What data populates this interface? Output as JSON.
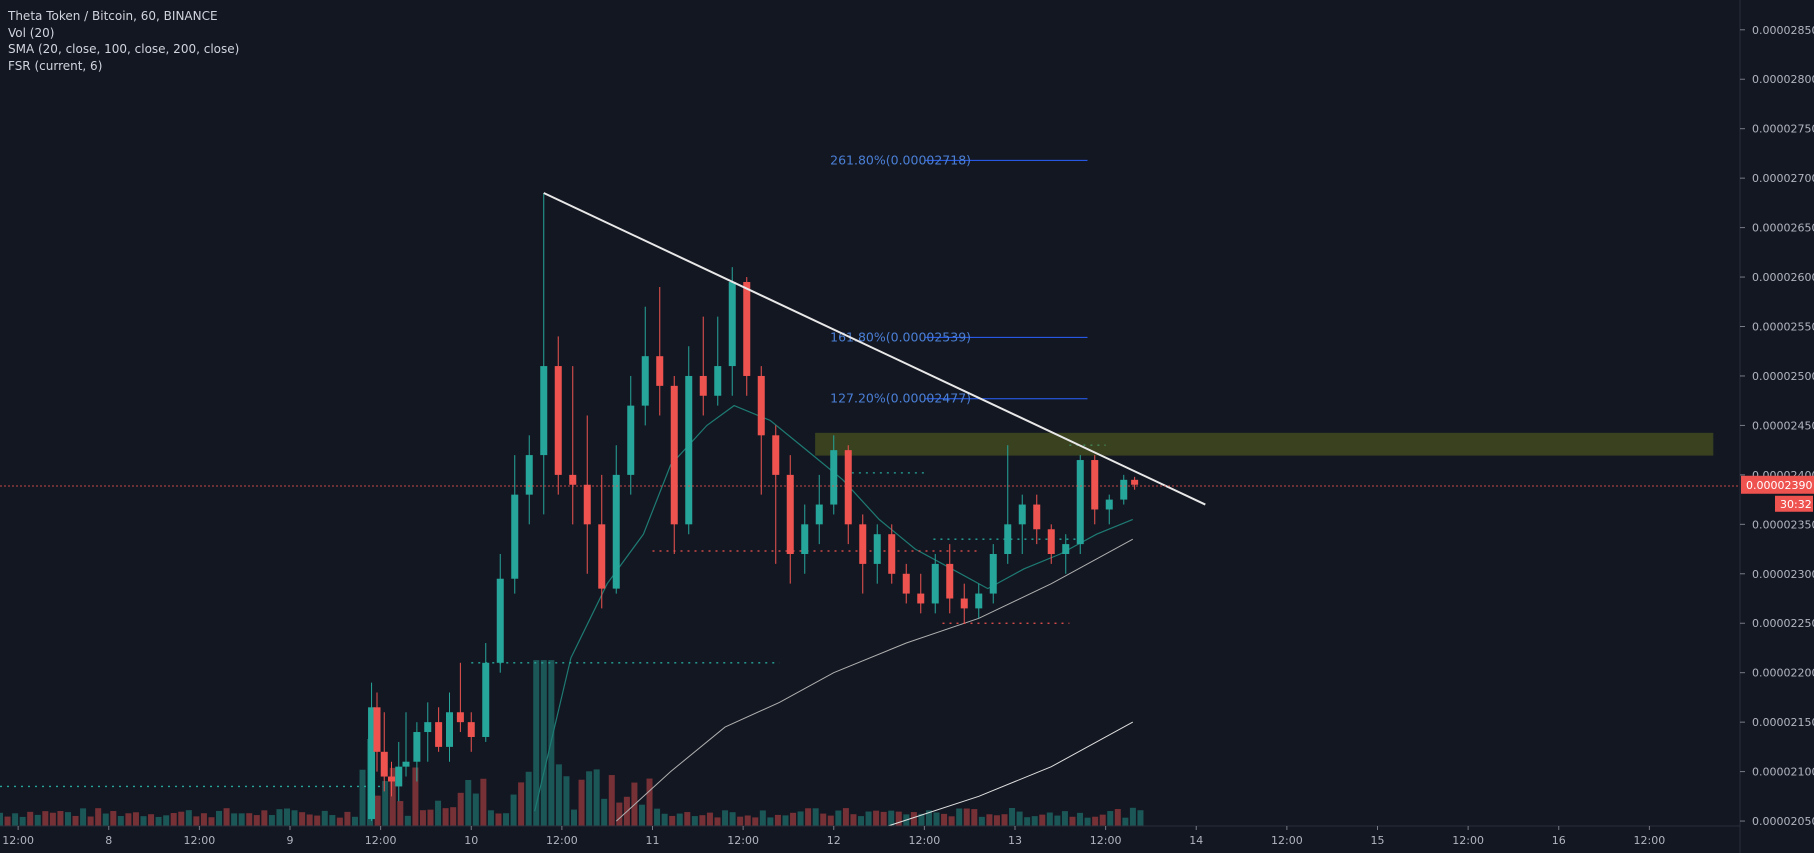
{
  "legend": {
    "title": "Theta Token / Bitcoin, 60, BINANCE",
    "vol": "Vol (20)",
    "sma": "SMA (20, close, 100, close, 200, close)",
    "fsr": "FSR (current, 6)"
  },
  "colors": {
    "background": "#131722",
    "up": "#26a69a",
    "down": "#ef5350",
    "fib": "#2962ff",
    "fib_text": "#4a7fd6",
    "trendline": "#e8e8e8",
    "zone": "#5f6b1e"
  },
  "price_axis": {
    "labels": [
      "0.00002850",
      "0.00002800",
      "0.00002750",
      "0.00002700",
      "0.00002650",
      "0.00002600",
      "0.00002550",
      "0.00002500",
      "0.00002450",
      "0.00002400",
      "0.00002350",
      "0.00002300",
      "0.00002250",
      "0.00002200",
      "0.00002150",
      "0.00002100",
      "0.00002050"
    ],
    "current_price": "0.00002390",
    "countdown": "30:32"
  },
  "time_axis": {
    "labels": [
      "12:00",
      "8",
      "12:00",
      "9",
      "12:00",
      "10",
      "12:00",
      "11",
      "12:00",
      "12",
      "12:00",
      "13",
      "12:00",
      "14",
      "12:00",
      "15",
      "12:00",
      "16",
      "12:00"
    ]
  },
  "fib_levels": [
    {
      "label": "261.80%(0.00002718)",
      "price": 2.718e-05
    },
    {
      "label": "161.80%(0.00002539)",
      "price": 2.539e-05
    },
    {
      "label": "127.20%(0.00002477)",
      "price": 2.477e-05
    }
  ],
  "chart_data": {
    "type": "candlestick",
    "symbol": "Theta Token / Bitcoin",
    "interval": "60",
    "exchange": "BINANCE",
    "ylim": [
      2.045e-05,
      2.87e-05
    ],
    "x_range_days": [
      7.4,
      17.0
    ],
    "ohlc": [
      {
        "t": 9.45,
        "o": 2.052e-05,
        "h": 2.19e-05,
        "l": 2.05e-05,
        "c": 2.165e-05
      },
      {
        "t": 9.48,
        "o": 2.165e-05,
        "h": 2.18e-05,
        "l": 2.1e-05,
        "c": 2.12e-05
      },
      {
        "t": 9.52,
        "o": 2.12e-05,
        "h": 2.16e-05,
        "l": 2.08e-05,
        "c": 2.095e-05
      },
      {
        "t": 9.56,
        "o": 2.095e-05,
        "h": 2.11e-05,
        "l": 2.075e-05,
        "c": 2.09e-05
      },
      {
        "t": 9.6,
        "o": 2.085e-05,
        "h": 2.13e-05,
        "l": 2.07e-05,
        "c": 2.105e-05
      },
      {
        "t": 9.64,
        "o": 2.105e-05,
        "h": 2.16e-05,
        "l": 2.095e-05,
        "c": 2.11e-05
      },
      {
        "t": 9.7,
        "o": 2.11e-05,
        "h": 2.15e-05,
        "l": 2.09e-05,
        "c": 2.14e-05
      },
      {
        "t": 9.76,
        "o": 2.14e-05,
        "h": 2.17e-05,
        "l": 2.11e-05,
        "c": 2.15e-05
      },
      {
        "t": 9.82,
        "o": 2.15e-05,
        "h": 2.165e-05,
        "l": 2.12e-05,
        "c": 2.125e-05
      },
      {
        "t": 9.88,
        "o": 2.125e-05,
        "h": 2.18e-05,
        "l": 2.11e-05,
        "c": 2.16e-05
      },
      {
        "t": 9.94,
        "o": 2.16e-05,
        "h": 2.21e-05,
        "l": 2.14e-05,
        "c": 2.15e-05
      },
      {
        "t": 10.0,
        "o": 2.15e-05,
        "h": 2.16e-05,
        "l": 2.12e-05,
        "c": 2.135e-05
      },
      {
        "t": 10.08,
        "o": 2.135e-05,
        "h": 2.23e-05,
        "l": 2.13e-05,
        "c": 2.21e-05
      },
      {
        "t": 10.16,
        "o": 2.21e-05,
        "h": 2.32e-05,
        "l": 2.2e-05,
        "c": 2.295e-05
      },
      {
        "t": 10.24,
        "o": 2.295e-05,
        "h": 2.42e-05,
        "l": 2.28e-05,
        "c": 2.38e-05
      },
      {
        "t": 10.32,
        "o": 2.38e-05,
        "h": 2.44e-05,
        "l": 2.35e-05,
        "c": 2.42e-05
      },
      {
        "t": 10.4,
        "o": 2.42e-05,
        "h": 2.685e-05,
        "l": 2.36e-05,
        "c": 2.51e-05
      },
      {
        "t": 10.48,
        "o": 2.51e-05,
        "h": 2.54e-05,
        "l": 2.38e-05,
        "c": 2.4e-05
      },
      {
        "t": 10.56,
        "o": 2.4e-05,
        "h": 2.51e-05,
        "l": 2.35e-05,
        "c": 2.39e-05
      },
      {
        "t": 10.64,
        "o": 2.39e-05,
        "h": 2.46e-05,
        "l": 2.3e-05,
        "c": 2.35e-05
      },
      {
        "t": 10.72,
        "o": 2.35e-05,
        "h": 2.4e-05,
        "l": 2.265e-05,
        "c": 2.285e-05
      },
      {
        "t": 10.8,
        "o": 2.285e-05,
        "h": 2.43e-05,
        "l": 2.28e-05,
        "c": 2.4e-05
      },
      {
        "t": 10.88,
        "o": 2.4e-05,
        "h": 2.5e-05,
        "l": 2.38e-05,
        "c": 2.47e-05
      },
      {
        "t": 10.96,
        "o": 2.47e-05,
        "h": 2.57e-05,
        "l": 2.45e-05,
        "c": 2.52e-05
      },
      {
        "t": 11.04,
        "o": 2.52e-05,
        "h": 2.59e-05,
        "l": 2.46e-05,
        "c": 2.49e-05
      },
      {
        "t": 11.12,
        "o": 2.49e-05,
        "h": 2.5e-05,
        "l": 2.32e-05,
        "c": 2.35e-05
      },
      {
        "t": 11.2,
        "o": 2.35e-05,
        "h": 2.53e-05,
        "l": 2.34e-05,
        "c": 2.5e-05
      },
      {
        "t": 11.28,
        "o": 2.5e-05,
        "h": 2.56e-05,
        "l": 2.46e-05,
        "c": 2.48e-05
      },
      {
        "t": 11.36,
        "o": 2.48e-05,
        "h": 2.56e-05,
        "l": 2.47e-05,
        "c": 2.51e-05
      },
      {
        "t": 11.44,
        "o": 2.51e-05,
        "h": 2.61e-05,
        "l": 2.48e-05,
        "c": 2.595e-05
      },
      {
        "t": 11.52,
        "o": 2.595e-05,
        "h": 2.6e-05,
        "l": 2.48e-05,
        "c": 2.5e-05
      },
      {
        "t": 11.6,
        "o": 2.5e-05,
        "h": 2.51e-05,
        "l": 2.38e-05,
        "c": 2.44e-05
      },
      {
        "t": 11.68,
        "o": 2.44e-05,
        "h": 2.45e-05,
        "l": 2.31e-05,
        "c": 2.4e-05
      },
      {
        "t": 11.76,
        "o": 2.4e-05,
        "h": 2.42e-05,
        "l": 2.29e-05,
        "c": 2.32e-05
      },
      {
        "t": 11.84,
        "o": 2.32e-05,
        "h": 2.37e-05,
        "l": 2.3e-05,
        "c": 2.35e-05
      },
      {
        "t": 11.92,
        "o": 2.35e-05,
        "h": 2.4e-05,
        "l": 2.33e-05,
        "c": 2.37e-05
      },
      {
        "t": 12.0,
        "o": 2.37e-05,
        "h": 2.44e-05,
        "l": 2.36e-05,
        "c": 2.425e-05
      },
      {
        "t": 12.08,
        "o": 2.425e-05,
        "h": 2.43e-05,
        "l": 2.33e-05,
        "c": 2.35e-05
      },
      {
        "t": 12.16,
        "o": 2.35e-05,
        "h": 2.36e-05,
        "l": 2.28e-05,
        "c": 2.31e-05
      },
      {
        "t": 12.24,
        "o": 2.31e-05,
        "h": 2.35e-05,
        "l": 2.29e-05,
        "c": 2.34e-05
      },
      {
        "t": 12.32,
        "o": 2.34e-05,
        "h": 2.35e-05,
        "l": 2.29e-05,
        "c": 2.3e-05
      },
      {
        "t": 12.4,
        "o": 2.3e-05,
        "h": 2.31e-05,
        "l": 2.27e-05,
        "c": 2.28e-05
      },
      {
        "t": 12.48,
        "o": 2.28e-05,
        "h": 2.3e-05,
        "l": 2.26e-05,
        "c": 2.27e-05
      },
      {
        "t": 12.56,
        "o": 2.27e-05,
        "h": 2.32e-05,
        "l": 2.26e-05,
        "c": 2.31e-05
      },
      {
        "t": 12.64,
        "o": 2.31e-05,
        "h": 2.33e-05,
        "l": 2.26e-05,
        "c": 2.275e-05
      },
      {
        "t": 12.72,
        "o": 2.275e-05,
        "h": 2.29e-05,
        "l": 2.25e-05,
        "c": 2.265e-05
      },
      {
        "t": 12.8,
        "o": 2.265e-05,
        "h": 2.29e-05,
        "l": 2.255e-05,
        "c": 2.28e-05
      },
      {
        "t": 12.88,
        "o": 2.28e-05,
        "h": 2.33e-05,
        "l": 2.27e-05,
        "c": 2.32e-05
      },
      {
        "t": 12.96,
        "o": 2.32e-05,
        "h": 2.43e-05,
        "l": 2.31e-05,
        "c": 2.35e-05
      },
      {
        "t": 13.04,
        "o": 2.35e-05,
        "h": 2.38e-05,
        "l": 2.32e-05,
        "c": 2.37e-05
      },
      {
        "t": 13.12,
        "o": 2.37e-05,
        "h": 2.38e-05,
        "l": 2.33e-05,
        "c": 2.345e-05
      },
      {
        "t": 13.2,
        "o": 2.345e-05,
        "h": 2.35e-05,
        "l": 2.31e-05,
        "c": 2.32e-05
      },
      {
        "t": 13.28,
        "o": 2.32e-05,
        "h": 2.34e-05,
        "l": 2.3e-05,
        "c": 2.33e-05
      },
      {
        "t": 13.36,
        "o": 2.33e-05,
        "h": 2.42e-05,
        "l": 2.32e-05,
        "c": 2.415e-05
      },
      {
        "t": 13.44,
        "o": 2.415e-05,
        "h": 2.42e-05,
        "l": 2.35e-05,
        "c": 2.365e-05
      },
      {
        "t": 13.52,
        "o": 2.365e-05,
        "h": 2.38e-05,
        "l": 2.35e-05,
        "c": 2.375e-05
      },
      {
        "t": 13.6,
        "o": 2.375e-05,
        "h": 2.4e-05,
        "l": 2.37e-05,
        "c": 2.395e-05
      },
      {
        "t": 13.66,
        "o": 2.395e-05,
        "h": 2.398e-05,
        "l": 2.385e-05,
        "c": 2.39e-05
      }
    ],
    "volume_range": [
      0,
      2.05e-06
    ],
    "annotations": {
      "trendline": {
        "from": {
          "t": 10.4,
          "price": 2.685e-05
        },
        "to": {
          "t": 14.05,
          "price": 2.37e-05
        }
      },
      "resistance_zone": {
        "t_from": 11.9,
        "t_to": 16.85,
        "price_from": 2.42e-05,
        "price_to": 2.442e-05
      }
    }
  }
}
